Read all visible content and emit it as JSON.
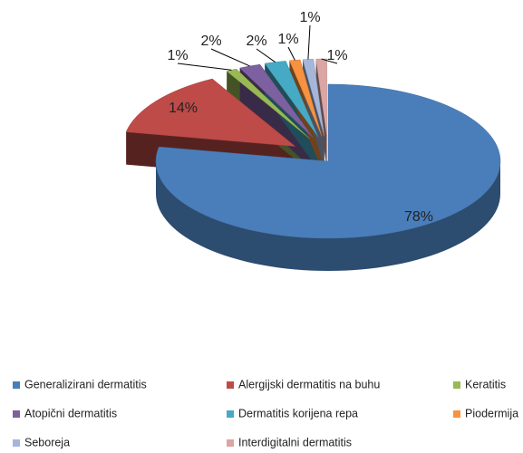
{
  "chart_data": {
    "type": "pie",
    "categories": [
      "Generalizirani dermatitis",
      "Alergijski dermatitis na buhu",
      "Keratitis",
      "Atopični dermatitis",
      "Dermatitis korijena repa",
      "Piodermija",
      "Seboreja",
      "Interdigitalni dermatitis"
    ],
    "values": [
      78,
      14,
      1,
      2,
      2,
      1,
      1,
      1
    ],
    "value_labels": [
      "78%",
      "14%",
      "1%",
      "2%",
      "2%",
      "1%",
      "1%",
      "1%"
    ],
    "colors": [
      "#4a7ebb",
      "#be4b48",
      "#98b954",
      "#7d60a0",
      "#46aac5",
      "#f69240",
      "#a5b6d9",
      "#dba5a4"
    ],
    "legend": "bottom"
  }
}
